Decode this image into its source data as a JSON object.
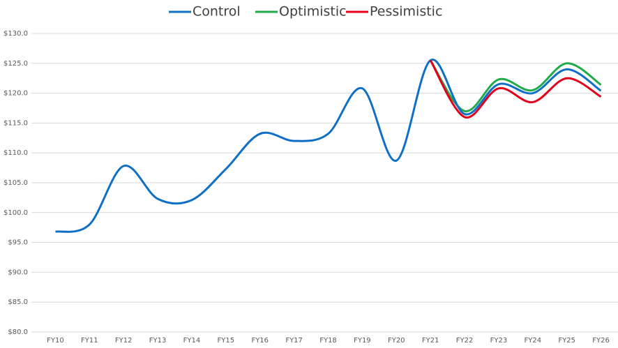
{
  "chart_data": {
    "type": "line",
    "categories": [
      "FY10",
      "FY11",
      "FY12",
      "FY13",
      "FY14",
      "FY15",
      "FY16",
      "FY17",
      "FY18",
      "FY19",
      "FY20",
      "FY21",
      "FY22",
      "FY23",
      "FY24",
      "FY25",
      "FY26"
    ],
    "series": [
      {
        "name": "Control",
        "color": "#0f6fc6",
        "values": [
          96.8,
          98.0,
          107.8,
          102.3,
          102.1,
          107.3,
          113.2,
          112.0,
          113.2,
          120.8,
          108.7,
          125.5,
          116.5,
          121.5,
          120.0,
          124.0,
          120.4
        ]
      },
      {
        "name": "Optimistic",
        "color": "#1eab48",
        "values": [
          null,
          null,
          null,
          null,
          null,
          null,
          null,
          null,
          null,
          null,
          null,
          125.5,
          117.0,
          122.3,
          120.5,
          125.0,
          121.4
        ]
      },
      {
        "name": "Pessimistic",
        "color": "#e3001b",
        "values": [
          null,
          null,
          null,
          null,
          null,
          null,
          null,
          null,
          null,
          null,
          null,
          125.5,
          116.0,
          120.8,
          118.5,
          122.5,
          119.4
        ]
      }
    ],
    "ylim": [
      80,
      130
    ],
    "yticks": [
      {
        "value": 80,
        "label": "$80.0"
      },
      {
        "value": 85,
        "label": "$85.0"
      },
      {
        "value": 90,
        "label": "$90.0"
      },
      {
        "value": 95,
        "label": "$95.0"
      },
      {
        "value": 100,
        "label": "$100.0"
      },
      {
        "value": 105,
        "label": "$105.0"
      },
      {
        "value": 110,
        "label": "$110.0"
      },
      {
        "value": 115,
        "label": "$115.0"
      },
      {
        "value": 120,
        "label": "$120.0"
      },
      {
        "value": 125,
        "label": "$125.0"
      },
      {
        "value": 130,
        "label": "$130.0"
      }
    ],
    "grid": true,
    "legend": "top"
  }
}
